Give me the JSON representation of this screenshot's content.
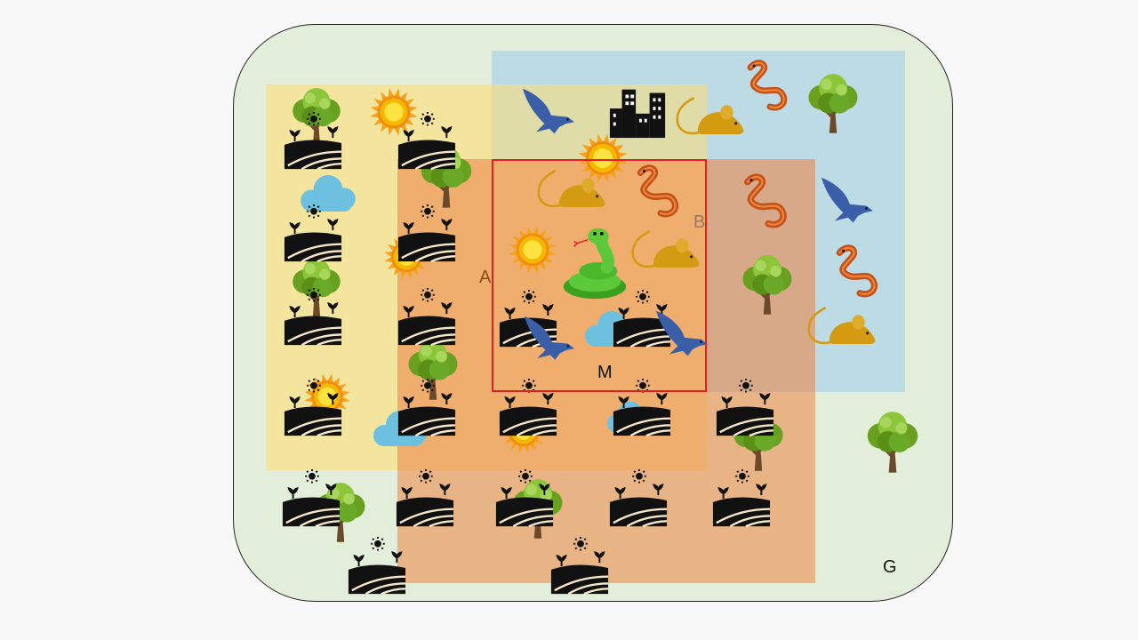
{
  "diagram": {
    "labels": {
      "a": "A",
      "b": "B",
      "m": "M",
      "g": "G"
    },
    "colors": {
      "region_g": "#e2eed9",
      "region_a": "#f3e49e",
      "region_b": "#bcdbe4",
      "region_c": "#e8b485",
      "region_m_border": "#e02020",
      "bird": "#3a5fa8",
      "mouse": "#d49a12",
      "snake_orange": "#c4501a",
      "snake_green": "#5cc83a",
      "sun": "#f5b800",
      "cloud": "#6ec0e0",
      "tree_leaves": "#6aa020"
    }
  }
}
